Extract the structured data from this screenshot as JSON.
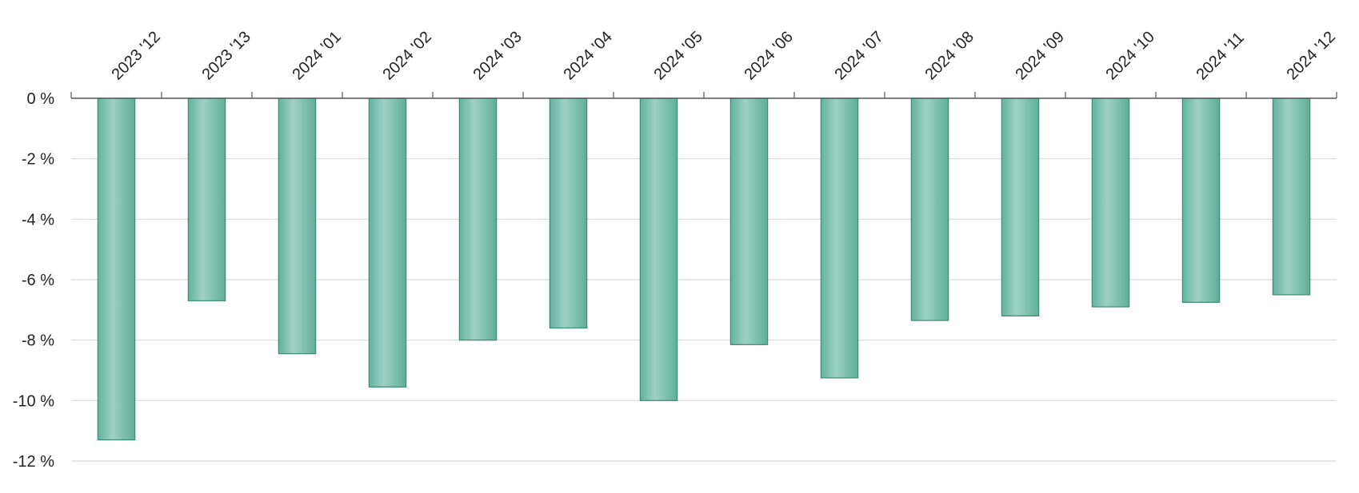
{
  "chart_data": {
    "type": "bar",
    "title": "",
    "xlabel": "",
    "ylabel": "",
    "x_axis_position": "top",
    "categories": [
      "2023 '12",
      "2023 '13",
      "2024 '01",
      "2024 '02",
      "2024 '03",
      "2024 '04",
      "2024 '05",
      "2024 '06",
      "2024 '07",
      "2024 '08",
      "2024 '09",
      "2024 '10",
      "2024 '11",
      "2024 '12"
    ],
    "values": [
      -11.3,
      -6.7,
      -8.45,
      -9.55,
      -8.0,
      -7.6,
      -10.0,
      -8.15,
      -9.25,
      -7.35,
      -7.2,
      -6.9,
      -6.75,
      -6.5
    ],
    "ylim": [
      -12,
      0
    ],
    "yticks": [
      0,
      -2,
      -4,
      -6,
      -8,
      -10,
      -12
    ],
    "ytick_labels": [
      "0 %",
      "-2 %",
      "-4 %",
      "-6 %",
      "-8 %",
      "-10 %",
      "-12 %"
    ],
    "grid": true,
    "bar_color": "#6dbba7",
    "bar_edge_color": "#3f8a76"
  }
}
